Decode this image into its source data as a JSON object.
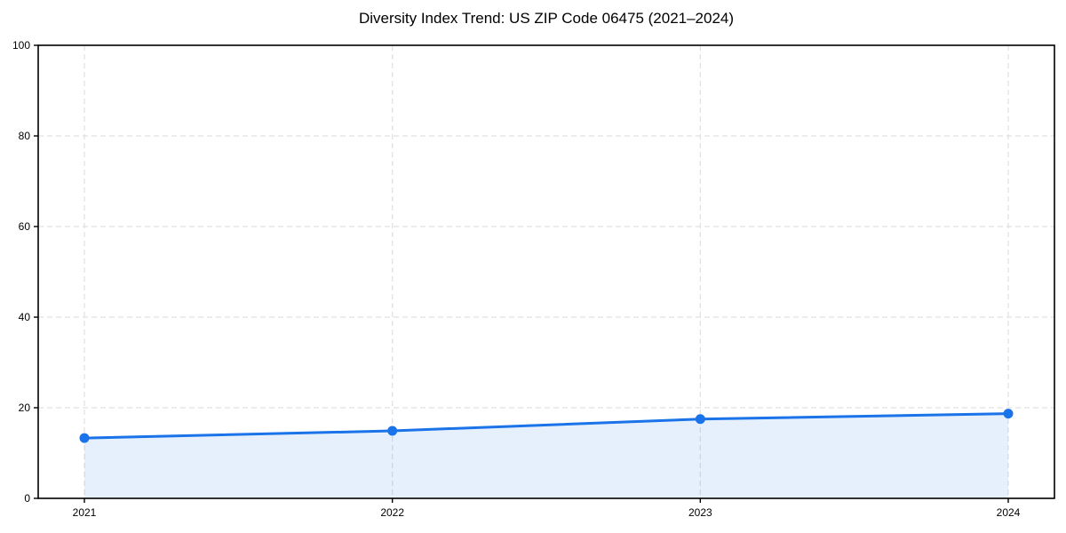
{
  "chart_data": {
    "type": "line",
    "title": "Diversity Index Trend: US ZIP Code 06475 (2021–2024)",
    "categories": [
      "2021",
      "2022",
      "2023",
      "2024"
    ],
    "series": [
      {
        "name": "Diversity Index",
        "values": [
          13.3,
          14.9,
          17.5,
          18.7
        ]
      }
    ],
    "xlabel": "",
    "ylabel": "",
    "ylim": [
      0,
      100
    ],
    "y_ticks": [
      0,
      20,
      40,
      60,
      80,
      100
    ],
    "grid": true,
    "legend": "none",
    "style": {
      "line_color": "#1a73e8",
      "marker_color": "#1a73e8",
      "area_fill_color": "rgba(26, 115, 232, 0.11)",
      "grid_color": "#e0e0e0",
      "axis_color": "#000000",
      "background_color": "#ffffff"
    }
  }
}
